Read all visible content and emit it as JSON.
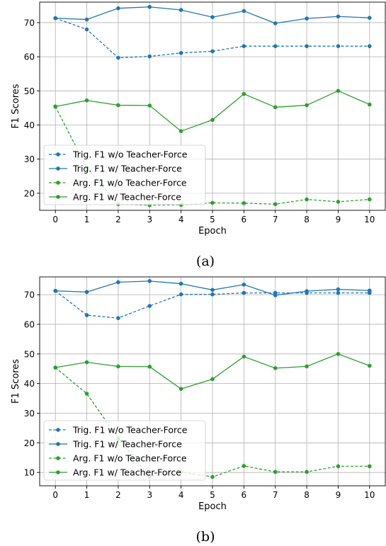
{
  "chart_data": [
    {
      "type": "line",
      "caption": "(a)",
      "xlabel": "Epoch",
      "ylabel": "F1 Scores",
      "x": [
        0,
        1,
        2,
        3,
        4,
        5,
        6,
        7,
        8,
        9,
        10
      ],
      "xlim": [
        -0.5,
        10.5
      ],
      "ylim": [
        15,
        76
      ],
      "yticks": [
        20,
        30,
        40,
        50,
        60,
        70
      ],
      "grid": true,
      "legend_position": "lower-left",
      "series": [
        {
          "name": "Trig. F1 w/o Teacher-Force",
          "color": "#1f77b4",
          "style": "dashed",
          "values": [
            71.3,
            68.0,
            59.7,
            60.1,
            61.1,
            61.6,
            63.1,
            63.1,
            63.1,
            63.1,
            63.1
          ]
        },
        {
          "name": "Trig. F1 w/ Teacher-Force",
          "color": "#1f77b4",
          "style": "solid",
          "values": [
            71.3,
            70.9,
            74.2,
            74.6,
            73.7,
            71.6,
            73.4,
            69.8,
            71.2,
            71.8,
            71.4
          ]
        },
        {
          "name": "Arg. F1 w/o Teacher-Force",
          "color": "#2ca02c",
          "style": "dashed",
          "values": [
            45.4,
            27.5,
            16.8,
            16.5,
            16.6,
            17.2,
            17.1,
            16.8,
            18.2,
            17.5,
            18.2
          ]
        },
        {
          "name": "Arg. F1 w/ Teacher-Force",
          "color": "#2ca02c",
          "style": "solid",
          "values": [
            45.4,
            47.2,
            45.8,
            45.7,
            38.2,
            41.5,
            49.1,
            45.2,
            45.8,
            50.0,
            46.0
          ]
        }
      ]
    },
    {
      "type": "line",
      "caption": "(b)",
      "xlabel": "Epoch",
      "ylabel": "F1 Scores",
      "x": [
        0,
        1,
        2,
        3,
        4,
        5,
        6,
        7,
        8,
        9,
        10
      ],
      "xlim": [
        -0.5,
        10.5
      ],
      "ylim": [
        5.5,
        76
      ],
      "yticks": [
        10,
        20,
        30,
        40,
        50,
        60,
        70
      ],
      "grid": true,
      "legend_position": "lower-left",
      "series": [
        {
          "name": "Trig. F1 w/o Teacher-Force",
          "color": "#1f77b4",
          "style": "dashed",
          "values": [
            71.3,
            63.1,
            62.1,
            66.2,
            70.1,
            70.1,
            70.6,
            70.6,
            70.6,
            70.6,
            70.6
          ]
        },
        {
          "name": "Trig. F1 w/ Teacher-Force",
          "color": "#1f77b4",
          "style": "solid",
          "values": [
            71.3,
            70.9,
            74.2,
            74.6,
            73.7,
            71.6,
            73.4,
            69.8,
            71.2,
            71.8,
            71.4
          ]
        },
        {
          "name": "Arg. F1 w/o Teacher-Force",
          "color": "#2ca02c",
          "style": "dashed",
          "values": [
            45.4,
            36.6,
            21.5,
            8.5,
            10.2,
            8.5,
            12.2,
            10.2,
            10.2,
            12.1,
            12.1
          ]
        },
        {
          "name": "Arg. F1 w/ Teacher-Force",
          "color": "#2ca02c",
          "style": "solid",
          "values": [
            45.4,
            47.2,
            45.8,
            45.7,
            38.2,
            41.5,
            49.1,
            45.2,
            45.8,
            50.0,
            46.0
          ]
        }
      ]
    }
  ]
}
